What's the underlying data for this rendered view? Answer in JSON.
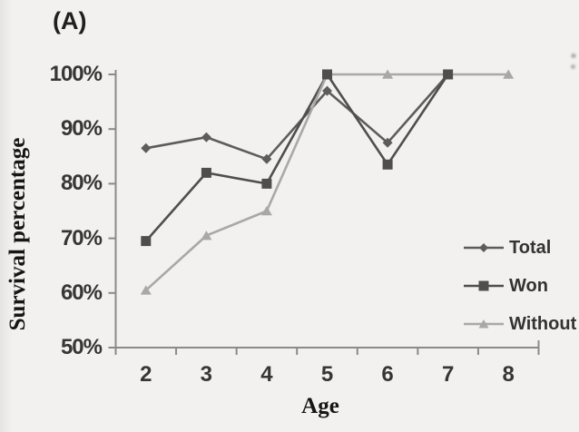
{
  "panel_label": "(A)",
  "chart_data": {
    "type": "line",
    "title": "",
    "xlabel": "Age",
    "ylabel": "Survival percentage",
    "categories": [
      "2",
      "3",
      "4",
      "5",
      "6",
      "7",
      "8"
    ],
    "ylim": [
      50,
      100
    ],
    "yticks": [
      {
        "value": 100,
        "label": "100%"
      },
      {
        "value": 90,
        "label": "90%"
      },
      {
        "value": 80,
        "label": "80%"
      },
      {
        "value": 70,
        "label": "70%"
      },
      {
        "value": 60,
        "label": "60%"
      },
      {
        "value": 50,
        "label": "50%"
      }
    ],
    "grid": false,
    "legend_position": "right-middle",
    "series": [
      {
        "name": "Total",
        "marker": "diamond",
        "color": "#5c5c5c",
        "values": [
          86.5,
          88.5,
          84.5,
          97,
          87.5,
          100,
          null
        ]
      },
      {
        "name": "Won",
        "marker": "square",
        "color": "#4e4e4e",
        "values": [
          69.5,
          82,
          80,
          100,
          83.5,
          100,
          null
        ]
      },
      {
        "name": "Without",
        "marker": "triangle",
        "color": "#a8a8a8",
        "values": [
          60.5,
          70.5,
          75,
          100,
          100,
          100,
          100
        ]
      }
    ],
    "axis_color": "#8a8a8a"
  },
  "colors": {
    "background": "#f2f1ef",
    "text": "#2f2f2f"
  }
}
